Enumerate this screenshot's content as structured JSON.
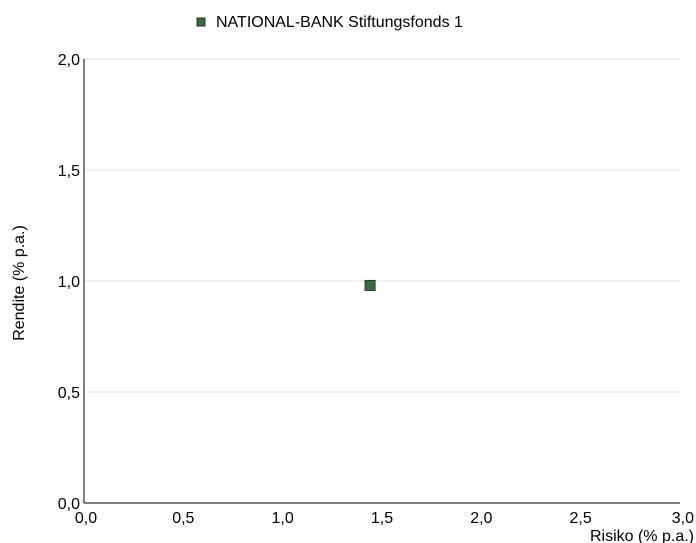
{
  "chart_data": {
    "type": "scatter",
    "title": "",
    "xlabel": "Risiko (% p.a.)",
    "ylabel": "Rendite (% p.a.)",
    "xlim": [
      0,
      3.0
    ],
    "ylim": [
      0,
      2.0
    ],
    "x_ticks": [
      "0,0",
      "0,5",
      "1,0",
      "1,5",
      "2,0",
      "2,5",
      "3,0"
    ],
    "x_tick_values": [
      0,
      0.5,
      1.0,
      1.5,
      2.0,
      2.5,
      3.0
    ],
    "y_ticks": [
      "0,0",
      "0,5",
      "1,0",
      "1,5",
      "2,0"
    ],
    "y_tick_values": [
      0,
      0.5,
      1.0,
      1.5,
      2.0
    ],
    "grid": true,
    "legend_position": "top-center",
    "series": [
      {
        "name": "NATIONAL-BANK Stiftungsfonds 1",
        "color": "#3a6b46",
        "marker": "square",
        "points": [
          {
            "x": 1.44,
            "y": 0.98
          }
        ]
      }
    ]
  }
}
